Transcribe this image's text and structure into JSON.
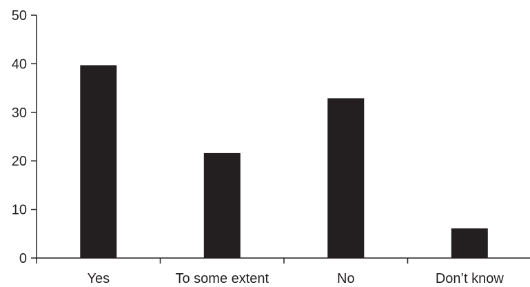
{
  "chart_data": {
    "type": "bar",
    "categories": [
      "Yes",
      "To some extent",
      "No",
      "Don’t know"
    ],
    "values": [
      39.7,
      21.6,
      32.9,
      6.1
    ],
    "title": "",
    "xlabel": "",
    "ylabel": "",
    "ylim": [
      0,
      50
    ],
    "yticks": [
      0,
      10,
      20,
      30,
      40,
      50
    ],
    "ytick_labels": [
      "0",
      "10",
      "20",
      "30",
      "40",
      "50"
    ],
    "grid": false,
    "legend": "none",
    "colors": {
      "bar": "#231f20",
      "axis": "#231f20",
      "text": "#231f20",
      "background": "#ffffff"
    }
  }
}
